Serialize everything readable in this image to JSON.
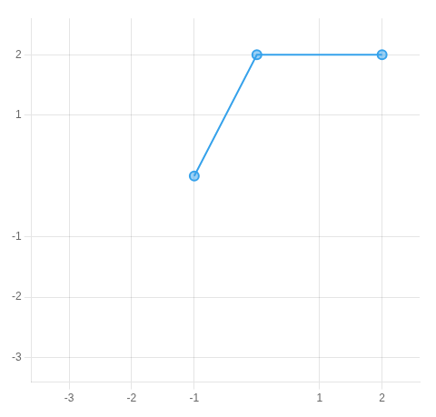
{
  "chart_data": {
    "type": "line",
    "x": [
      -1,
      0,
      2
    ],
    "series": [
      {
        "values": [
          0,
          2,
          2
        ],
        "marker": "circle",
        "line_style": "solid"
      }
    ],
    "xlim": [
      -3.6,
      2.6
    ],
    "ylim": [
      -3.4,
      2.6
    ],
    "xticks": [
      -3,
      -2,
      -1,
      1,
      2
    ],
    "yticks": [
      -3,
      -2,
      -1,
      1,
      2
    ],
    "grid": true
  }
}
